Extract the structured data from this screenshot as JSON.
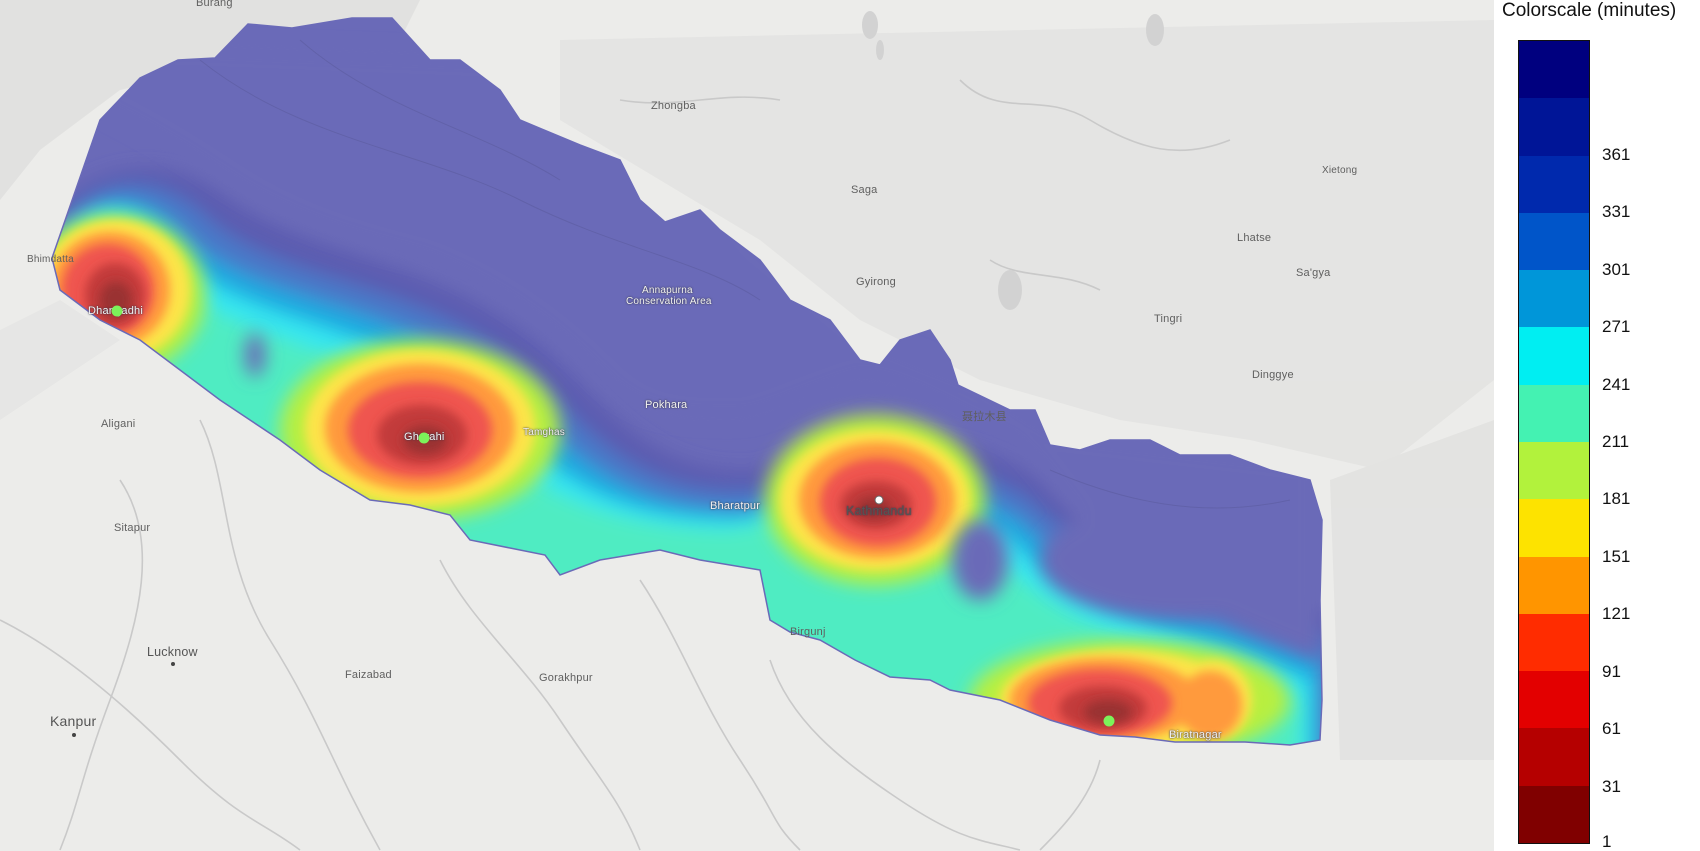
{
  "legend": {
    "title": "Colorscale (minutes)",
    "unit": "minutes",
    "colors": [
      "#00007f",
      "#001597",
      "#0029ad",
      "#0055c9",
      "#0096d9",
      "#00eef2",
      "#44f2b2",
      "#b2f23c",
      "#fde300",
      "#ff9500",
      "#ff2c00",
      "#e30000",
      "#b50000",
      "#800000"
    ],
    "ticks": [
      "361",
      "331",
      "301",
      "271",
      "241",
      "211",
      "181",
      "151",
      "121",
      "91",
      "61",
      "31",
      "1"
    ]
  },
  "map": {
    "places": {
      "burang": "Burang",
      "zhongba": "Zhongba",
      "saga": "Saga",
      "gyirong": "Gyirong",
      "xietong": "Xietong",
      "lhatse": "Lhatse",
      "sagya": "Sa'gya",
      "tingri": "Tingri",
      "dinggye": "Dinggye",
      "nyalam": "聂拉木县",
      "bhimdatta": "Bhimdatta",
      "dhangadhi": "Dhangadhi",
      "aligani": "Aligani",
      "ghorahi": "Ghorahi",
      "tamghas": "Tamghas",
      "annapurna1": "Annapurna",
      "annapurna2": "Conservation Area",
      "pokhara": "Pokhara",
      "bharatpur": "Bharatpur",
      "kathmandu": "Kathmandu",
      "birgunj": "Birgunj",
      "biratnagar": "Biratnagar",
      "sitapur": "Sitapur",
      "lucknow": "Lucknow",
      "faizabad": "Faizabad",
      "gorakhpur": "Gorakhpur",
      "kanpur": "Kanpur"
    }
  }
}
